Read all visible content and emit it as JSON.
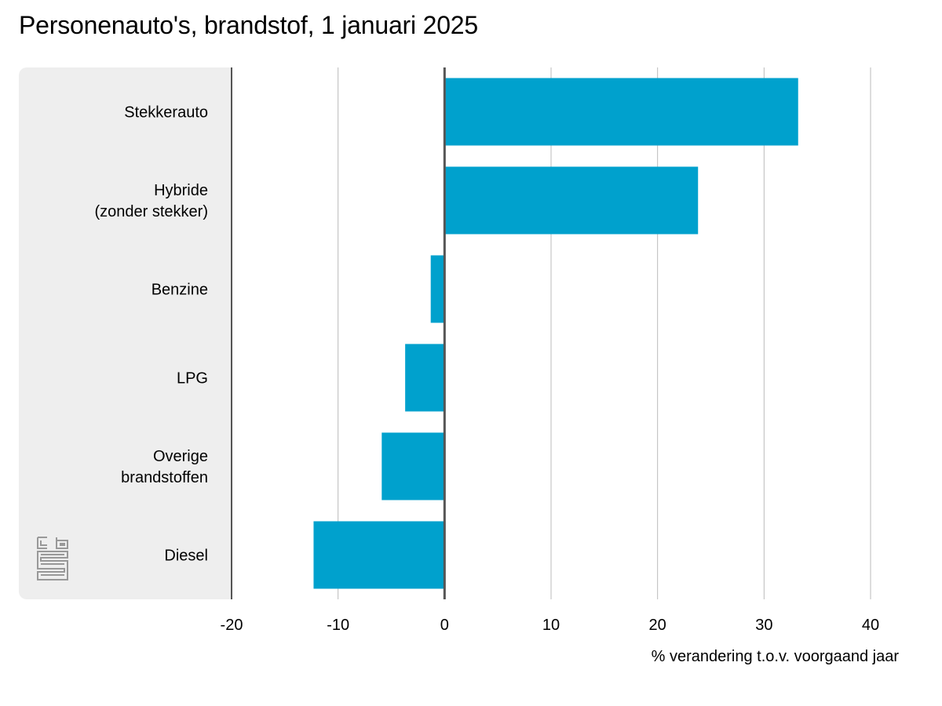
{
  "title": "Personenauto's, brandstof, 1 januari 2025",
  "chart_data": {
    "type": "bar",
    "orientation": "horizontal",
    "title": "Personenauto's, brandstof, 1 januari 2025",
    "categories": [
      [
        "Stekkerauto"
      ],
      [
        "Hybride",
        "(zonder stekker)"
      ],
      [
        "Benzine"
      ],
      [
        "LPG"
      ],
      [
        "Overige",
        "brandstoffen"
      ],
      [
        "Diesel"
      ]
    ],
    "values": [
      33.2,
      23.8,
      -1.3,
      -3.7,
      -5.9,
      -12.3
    ],
    "xlabel": "% verandering t.o.v. voorgaand jaar",
    "ylabel": "",
    "xlim": [
      -20,
      40
    ],
    "ticks": [
      -20,
      -10,
      0,
      10,
      20,
      30,
      40
    ],
    "tick_labels": [
      "-20",
      "-10",
      "0",
      "10",
      "20",
      "30",
      "40"
    ],
    "grid": "vertical",
    "bar_color": "#00a1cd",
    "grid_color": "#bbbbbb",
    "axis_color": "#555555",
    "panel_color": "#eeeeee"
  },
  "logo": {
    "icon": "cbs-logo-icon",
    "color": "#999999"
  }
}
